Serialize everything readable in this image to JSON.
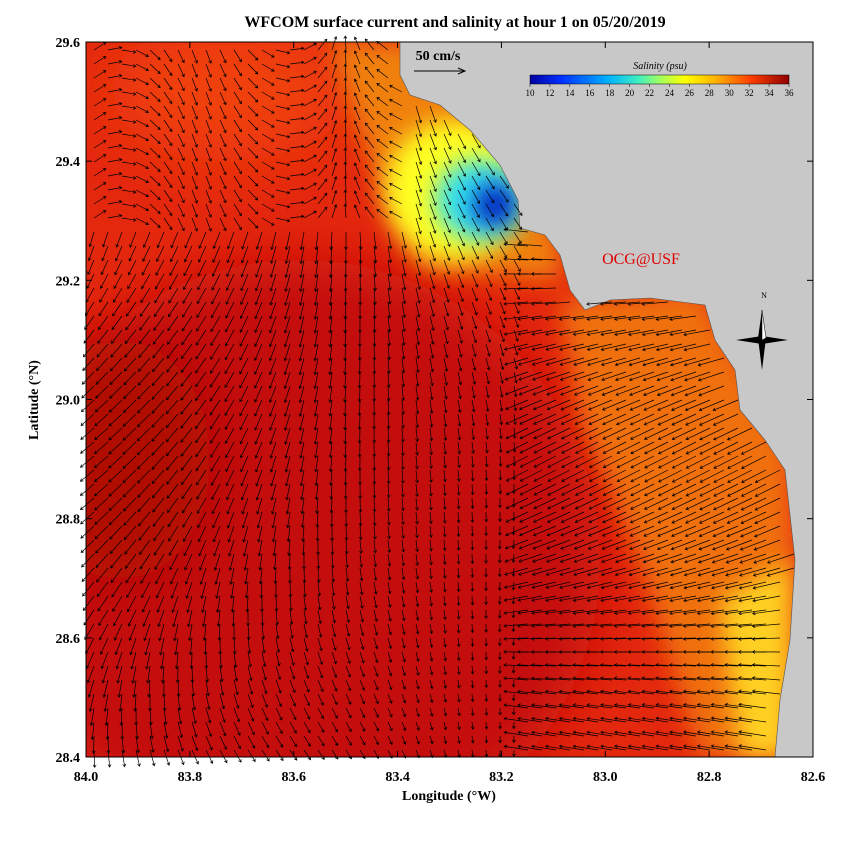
{
  "title": "WFCOM surface current and salinity at hour 1 on 05/20/2019",
  "x_axis": {
    "label": "Longitude (°W)",
    "ticks": [
      {
        "value": 84,
        "label": "84.0"
      },
      {
        "value": 83.8,
        "label": "83.8"
      },
      {
        "value": 83.6,
        "label": "83.6"
      },
      {
        "value": 83.4,
        "label": "83.4"
      },
      {
        "value": 83.2,
        "label": "83.2"
      },
      {
        "value": 83,
        "label": "83.0"
      },
      {
        "value": 82.8,
        "label": "82.8"
      },
      {
        "value": 82.6,
        "label": "82.6"
      }
    ]
  },
  "y_axis": {
    "label": "Latitude (°N)",
    "ticks": [
      {
        "value": 28.4,
        "label": "28.4"
      },
      {
        "value": 28.6,
        "label": "28.6"
      },
      {
        "value": 28.8,
        "label": "28.8"
      },
      {
        "value": 29,
        "label": "29.0"
      },
      {
        "value": 29.2,
        "label": "29.2"
      },
      {
        "value": 29.4,
        "label": "29.4"
      },
      {
        "value": 29.6,
        "label": "29.6"
      }
    ]
  },
  "colorbar": {
    "title": "Salinity (psu)",
    "ticks": [
      10,
      12,
      14,
      16,
      18,
      20,
      22,
      24,
      26,
      28,
      30,
      32,
      34,
      36
    ]
  },
  "scale_arrow": {
    "label": "50 cm/s"
  },
  "credit": "OCG@USF",
  "compass": "N"
}
